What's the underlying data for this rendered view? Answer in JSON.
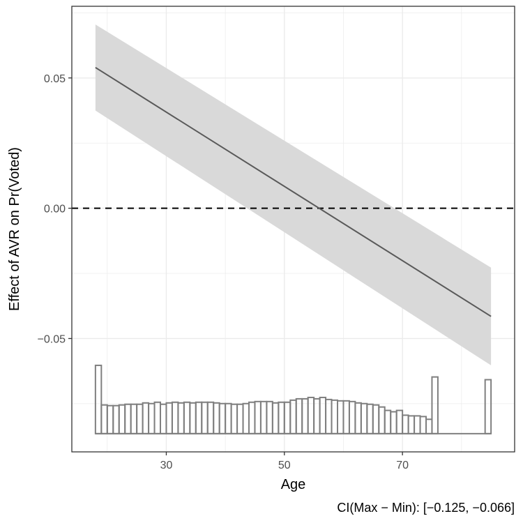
{
  "chart_data": {
    "type": "line",
    "xlabel": "Age",
    "ylabel": "Effect of AVR on Pr(Voted)",
    "caption": "CI(Max − Min): [−0.125, −0.066]",
    "xlim": [
      14,
      89
    ],
    "ylim": [
      -0.0935,
      0.0775
    ],
    "x_ticks": [
      30,
      50,
      70
    ],
    "x_tick_labels": [
      "30",
      "50",
      "70"
    ],
    "y_ticks": [
      -0.05,
      0.0,
      0.05
    ],
    "y_tick_labels": [
      "−0.05",
      "0.00",
      "0.05"
    ],
    "grid": true,
    "reference_line": {
      "y": 0.0,
      "style": "dashed"
    },
    "effect_line": {
      "x": [
        18,
        85
      ],
      "y": [
        0.054,
        -0.0415
      ]
    },
    "confidence_band": {
      "x": [
        18,
        85
      ],
      "lower": [
        0.0375,
        -0.0603
      ],
      "upper": [
        0.0705,
        -0.0228
      ]
    },
    "histogram": {
      "x_start": 18,
      "bin_width": 1,
      "baseline_y": -0.0865,
      "max_height_y": -0.0603,
      "relative_heights": [
        1.0,
        0.42,
        0.41,
        0.41,
        0.42,
        0.43,
        0.43,
        0.43,
        0.45,
        0.44,
        0.46,
        0.43,
        0.45,
        0.46,
        0.45,
        0.46,
        0.45,
        0.46,
        0.46,
        0.46,
        0.45,
        0.44,
        0.44,
        0.43,
        0.43,
        0.44,
        0.46,
        0.47,
        0.47,
        0.47,
        0.45,
        0.46,
        0.46,
        0.49,
        0.51,
        0.51,
        0.53,
        0.51,
        0.53,
        0.5,
        0.49,
        0.48,
        0.48,
        0.47,
        0.45,
        0.44,
        0.43,
        0.42,
        0.39,
        0.34,
        0.32,
        0.34,
        0.27,
        0.26,
        0.26,
        0.25,
        0.21,
        0.83,
        0.0,
        0.0,
        0.0,
        0.0,
        0.0,
        0.0,
        0.0,
        0.0,
        0.79
      ]
    },
    "colors": {
      "line": "#595959",
      "band": "#d9d9d9",
      "grid": "#ebebeb",
      "panel_border": "#333333",
      "histogram_stroke": "#7f7f7f",
      "reference": "#000000"
    }
  }
}
